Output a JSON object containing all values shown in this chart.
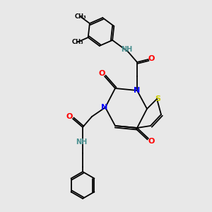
{
  "background_color": "#e8e8e8",
  "bond_color": "#000000",
  "atom_colors": {
    "N": "#0000ff",
    "O": "#ff0000",
    "S": "#cccc00",
    "NH": "#4a9090",
    "C": "#000000"
  },
  "font_size_atom": 8,
  "font_size_small": 7
}
